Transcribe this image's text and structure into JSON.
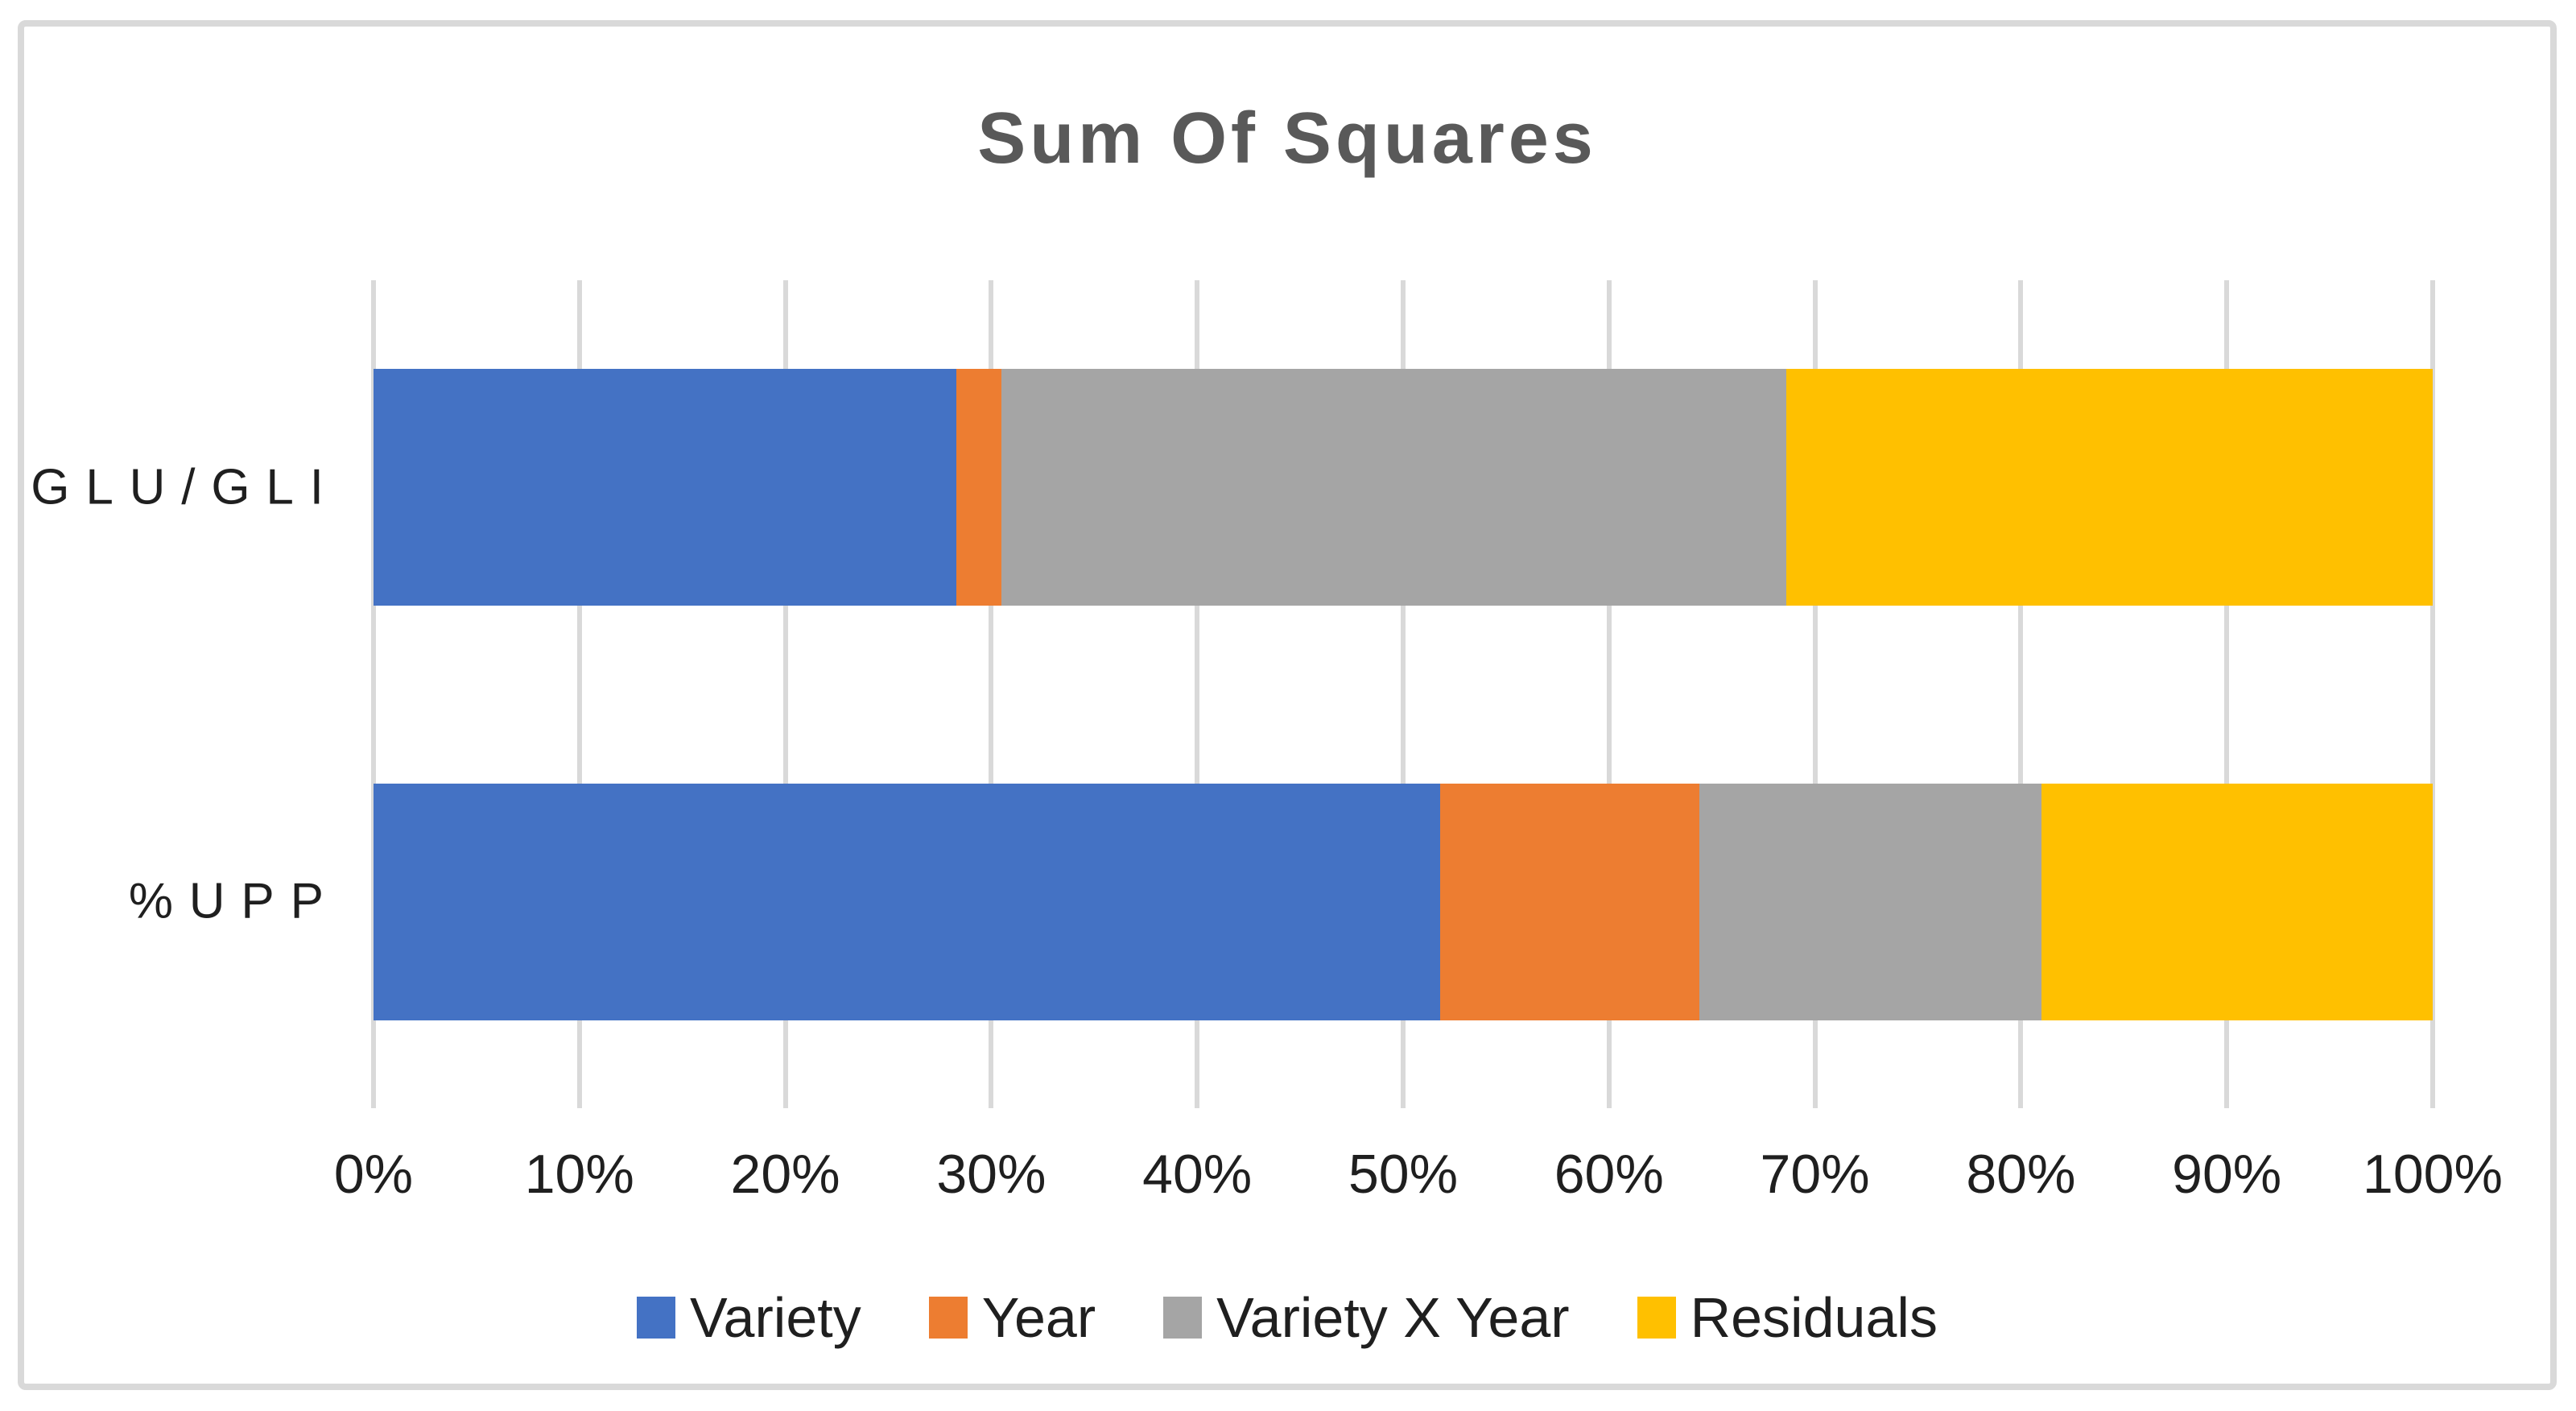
{
  "title": "Sum Of Squares",
  "colors": {
    "series_variety": "#4472C4",
    "series_year": "#ED7D31",
    "series_variety_x_year": "#A5A5A5",
    "series_residuals": "#FFC000",
    "gridline": "#D9D9D9",
    "frame_border": "#D9D9D9",
    "title_text": "#595959",
    "axis_text": "#1f1f1f"
  },
  "chart_data": {
    "type": "bar",
    "orientation": "horizontal",
    "stacked": true,
    "stacked_total_percent": 100,
    "title": "Sum Of Squares",
    "xlabel": "",
    "ylabel": "",
    "categories": [
      "GLU/GLI",
      "%UPP"
    ],
    "series": [
      {
        "name": "Variety",
        "color": "#4472C4",
        "values": [
          28.3,
          51.8
        ]
      },
      {
        "name": "Year",
        "color": "#ED7D31",
        "values": [
          2.2,
          12.6
        ]
      },
      {
        "name": "Variety X Year",
        "color": "#A5A5A5",
        "values": [
          38.1,
          16.6
        ]
      },
      {
        "name": "Residuals",
        "color": "#FFC000",
        "values": [
          31.4,
          19.0
        ]
      }
    ],
    "xlim": [
      0,
      100
    ],
    "x_tick_labels": [
      "0%",
      "10%",
      "20%",
      "30%",
      "40%",
      "50%",
      "60%",
      "70%",
      "80%",
      "90%",
      "100%"
    ],
    "grid": "vertical",
    "legend_position": "bottom"
  }
}
